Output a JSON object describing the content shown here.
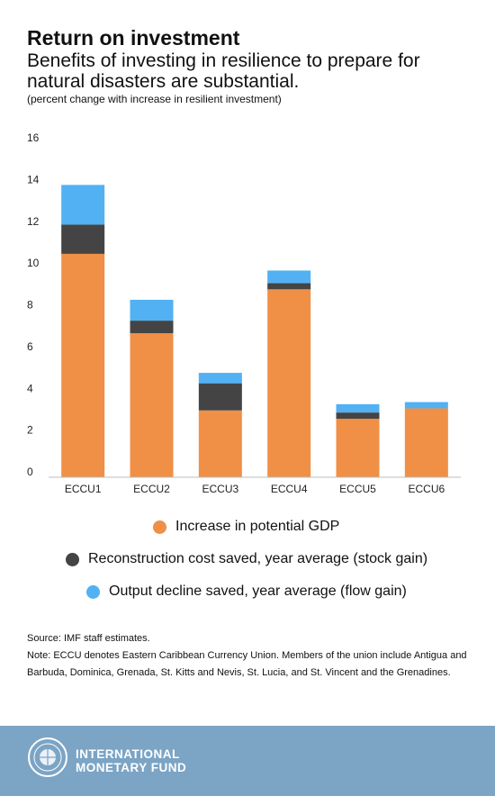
{
  "header": {
    "title": "Return on investment",
    "subtitle": "Benefits of investing in resilience to prepare for natural disasters are substantial.",
    "units_note": "(percent change with increase in resilient investment)"
  },
  "chart_data": {
    "type": "bar",
    "stacked": true,
    "categories": [
      "ECCU1",
      "ECCU2",
      "ECCU3",
      "ECCU4",
      "ECCU5",
      "ECCU6"
    ],
    "series": [
      {
        "name": "Increase in potential GDP",
        "color": "#f08f46",
        "values": [
          10.7,
          6.9,
          3.2,
          9.0,
          2.8,
          3.3
        ]
      },
      {
        "name": "Reconstruction cost saved, year average (stock gain)",
        "color": "#444444",
        "values": [
          1.4,
          0.6,
          1.3,
          0.3,
          0.3,
          0.0
        ]
      },
      {
        "name": "Output decline saved, year average (flow gain)",
        "color": "#52b1f2",
        "values": [
          1.9,
          1.0,
          0.5,
          0.6,
          0.4,
          0.3
        ]
      }
    ],
    "ylim": [
      0,
      16
    ],
    "yticks": [
      0,
      2,
      4,
      6,
      8,
      10,
      12,
      14,
      16
    ],
    "grid": false,
    "legend_position": "bottom"
  },
  "legend": {
    "items": [
      {
        "label": "Increase in potential GDP",
        "color": "#f08f46"
      },
      {
        "label": "Reconstruction cost saved, year average (stock gain)",
        "color": "#444444"
      },
      {
        "label": "Output decline saved, year average (flow gain)",
        "color": "#52b1f2"
      }
    ]
  },
  "footnotes": {
    "source": "Source: IMF staff estimates.",
    "note": "Note:  ECCU denotes Eastern Caribbean Currency Union. Members of the union include Antigua and Barbuda, Dominica, Grenada, St. Kitts and Nevis, St. Lucia, and St. Vincent and the Grenadines."
  },
  "footer": {
    "org_line1": "INTERNATIONAL",
    "org_line2": "MONETARY FUND",
    "logo_icon": "imf-seal-icon",
    "background": "#7ba4c5"
  }
}
